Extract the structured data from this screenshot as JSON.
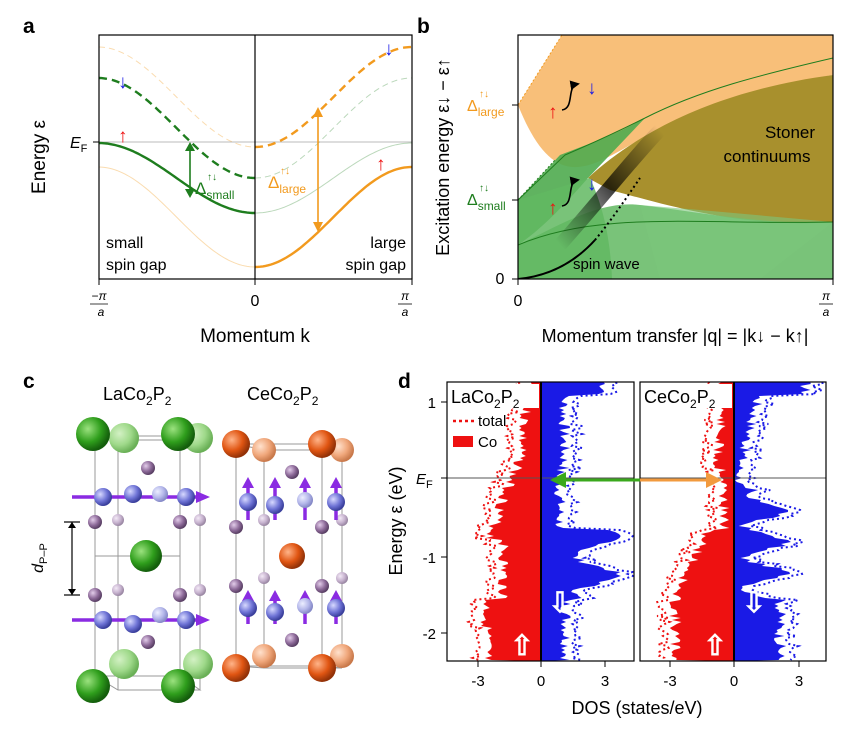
{
  "panel_a": {
    "letter": "a",
    "ylabel": "Energy ε",
    "ef": "E",
    "ef_sub": "F",
    "left_note": [
      "small",
      "spin gap"
    ],
    "right_note": [
      "large",
      "spin gap"
    ],
    "gap_small": "Δ",
    "gap_small_sub": "small",
    "gap_large": "Δ",
    "gap_large_sub": "large",
    "gap_sup": "↑↓",
    "xlabel": "Momentum k",
    "xticks": [
      "−π/a",
      "0",
      "π/a"
    ],
    "arrow_up": "↑",
    "arrow_down": "↓"
  },
  "panel_b": {
    "letter": "b",
    "ylabel": "Excitation energy ε↓ − ε↑",
    "gap_large": "Δ",
    "gap_large_sub": "large",
    "gap_small": "Δ",
    "gap_small_sub": "small",
    "gap_sup": "↑↓",
    "stoner": [
      "Stoner",
      "continuums"
    ],
    "spin_wave": "spin wave",
    "xlabel": "Momentum transfer |q| = |k↓ − k↑|",
    "xticks": [
      "0",
      "π/a"
    ],
    "ytick0": "0",
    "arrow_up": "↑",
    "arrow_down": "↓"
  },
  "panel_c": {
    "letter": "c",
    "label_left": "LaCo2P2",
    "label_right": "CeCo2P2",
    "dpp": "d",
    "dpp_sub": "P–P"
  },
  "panel_d": {
    "letter": "d",
    "ylabel": "Energy ε (eV)",
    "ef": "E",
    "ef_sub": "F",
    "yticks": [
      "1",
      "",
      "-1",
      "-2"
    ],
    "legend_total": "total",
    "legend_co": "Co",
    "title_left": "LaCo2P2",
    "title_right": "CeCo2P2",
    "xticks": [
      "-3",
      "0",
      "3"
    ],
    "xlabel": "DOS (states/eV)",
    "up_glyph": "⇧",
    "down_glyph": "⇩"
  },
  "colors": {
    "green": "#1e7d1e",
    "orange": "#f29a1e",
    "red": "#ee1111",
    "blue": "#1a1ae6",
    "la_green": "#2f9e1c",
    "ce_orange": "#e05512",
    "co_blue": "#6f74d6",
    "p_purple": "#8e6b9a"
  }
}
